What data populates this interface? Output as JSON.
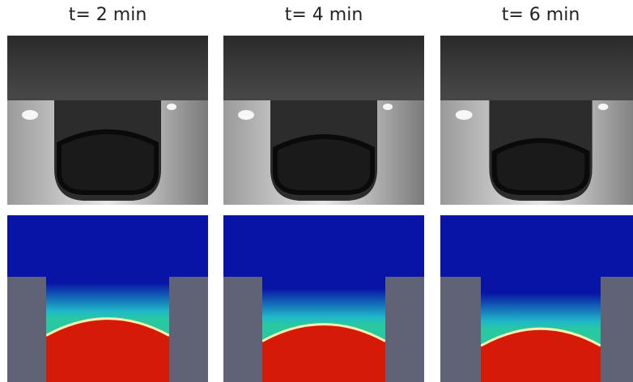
{
  "figure": {
    "columns": [
      {
        "label": "t= 2 min",
        "level": 0.48
      },
      {
        "label": "t= 4 min",
        "level": 0.58
      },
      {
        "label": "t= 6 min",
        "level": 0.66
      }
    ],
    "colors": {
      "top_fluid": "#0814a6",
      "mid_fluid": "#1fb8c8",
      "bottom_fluid": "#d61a08",
      "interface": "#f4f0b0",
      "wall": "#5f6375",
      "photo_background": "#3a3a3a"
    }
  }
}
